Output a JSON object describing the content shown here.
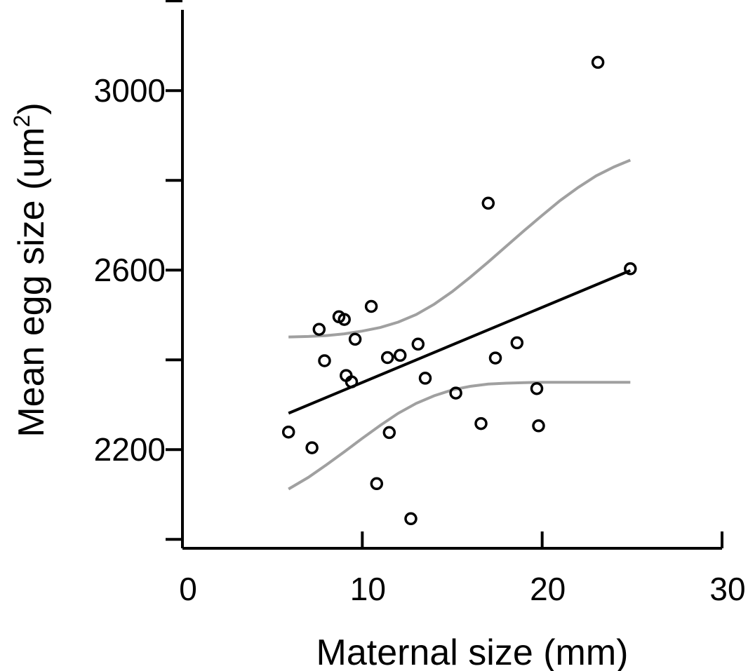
{
  "chart_data": {
    "type": "scatter",
    "title": "",
    "xlabel": "Maternal size (mm)",
    "ylabel_main": "Mean egg size (um",
    "ylabel_sup": "2",
    "ylabel_close": ")",
    "xlim": [
      0,
      30
    ],
    "ylim": [
      1980,
      3180
    ],
    "x_ticks": [
      0,
      10,
      20,
      30
    ],
    "x_tick_labels": [
      "0",
      "10",
      "20",
      "30"
    ],
    "y_ticks": [
      2000,
      2200,
      2400,
      2600,
      2800,
      3000,
      3200
    ],
    "y_tick_labels": [
      "",
      "2200",
      "",
      "2600",
      "",
      "3000",
      ""
    ],
    "grid": false,
    "colors": {
      "points": "#000000",
      "fit": "#000000",
      "ci": "#a0a0a0"
    },
    "points": [
      {
        "x": 5.9,
        "y": 2239
      },
      {
        "x": 7.2,
        "y": 2204
      },
      {
        "x": 7.6,
        "y": 2468
      },
      {
        "x": 7.9,
        "y": 2398
      },
      {
        "x": 8.7,
        "y": 2496
      },
      {
        "x": 9.0,
        "y": 2490
      },
      {
        "x": 9.1,
        "y": 2365
      },
      {
        "x": 9.4,
        "y": 2351
      },
      {
        "x": 9.6,
        "y": 2446
      },
      {
        "x": 10.5,
        "y": 2519
      },
      {
        "x": 10.8,
        "y": 2124
      },
      {
        "x": 11.4,
        "y": 2405
      },
      {
        "x": 11.5,
        "y": 2238
      },
      {
        "x": 12.1,
        "y": 2410
      },
      {
        "x": 12.7,
        "y": 2046
      },
      {
        "x": 13.1,
        "y": 2435
      },
      {
        "x": 13.5,
        "y": 2359
      },
      {
        "x": 15.2,
        "y": 2326
      },
      {
        "x": 16.6,
        "y": 2258
      },
      {
        "x": 17.0,
        "y": 2749
      },
      {
        "x": 17.4,
        "y": 2404
      },
      {
        "x": 18.6,
        "y": 2438
      },
      {
        "x": 19.7,
        "y": 2336
      },
      {
        "x": 19.8,
        "y": 2253
      },
      {
        "x": 23.1,
        "y": 3063
      },
      {
        "x": 24.9,
        "y": 2603
      }
    ],
    "fit_line": [
      {
        "x": 5.9,
        "y": 2281
      },
      {
        "x": 24.9,
        "y": 2599
      }
    ],
    "ci_upper": [
      {
        "x": 5.9,
        "y": 2451
      },
      {
        "x": 7,
        "y": 2452
      },
      {
        "x": 8,
        "y": 2454
      },
      {
        "x": 9,
        "y": 2458
      },
      {
        "x": 10,
        "y": 2464
      },
      {
        "x": 11,
        "y": 2472
      },
      {
        "x": 12,
        "y": 2484
      },
      {
        "x": 13,
        "y": 2501
      },
      {
        "x": 14,
        "y": 2524
      },
      {
        "x": 15,
        "y": 2552
      },
      {
        "x": 16,
        "y": 2584
      },
      {
        "x": 17,
        "y": 2618
      },
      {
        "x": 18,
        "y": 2653
      },
      {
        "x": 19,
        "y": 2688
      },
      {
        "x": 20,
        "y": 2722
      },
      {
        "x": 21,
        "y": 2755
      },
      {
        "x": 22,
        "y": 2784
      },
      {
        "x": 23,
        "y": 2810
      },
      {
        "x": 24,
        "y": 2830
      },
      {
        "x": 24.9,
        "y": 2845
      }
    ],
    "ci_lower": [
      {
        "x": 5.9,
        "y": 2112
      },
      {
        "x": 7,
        "y": 2138
      },
      {
        "x": 8,
        "y": 2166
      },
      {
        "x": 9,
        "y": 2195
      },
      {
        "x": 10,
        "y": 2225
      },
      {
        "x": 11,
        "y": 2254
      },
      {
        "x": 12,
        "y": 2281
      },
      {
        "x": 13,
        "y": 2303
      },
      {
        "x": 14,
        "y": 2320
      },
      {
        "x": 15,
        "y": 2333
      },
      {
        "x": 16,
        "y": 2341
      },
      {
        "x": 17,
        "y": 2346
      },
      {
        "x": 18,
        "y": 2348
      },
      {
        "x": 19,
        "y": 2349
      },
      {
        "x": 20,
        "y": 2350
      },
      {
        "x": 21,
        "y": 2350
      },
      {
        "x": 22,
        "y": 2350
      },
      {
        "x": 23,
        "y": 2350
      },
      {
        "x": 24,
        "y": 2350
      },
      {
        "x": 24.9,
        "y": 2350
      }
    ]
  }
}
